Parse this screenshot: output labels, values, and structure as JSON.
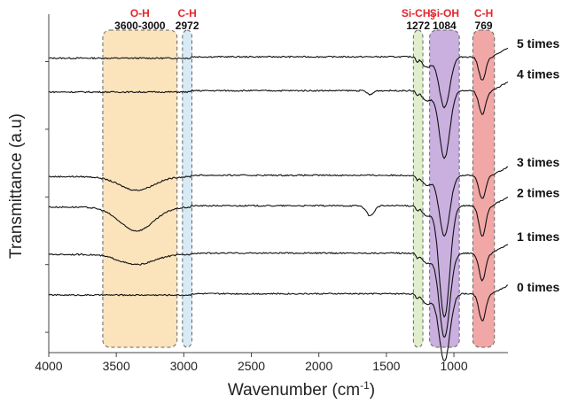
{
  "chart_data": {
    "type": "line",
    "title": "",
    "xlabel": "Wavenumber (cm",
    "xlabel_sup": "-1",
    "xlabel_close": ")",
    "ylabel": "Transmittance (a.u)",
    "xlim": [
      4000,
      600
    ],
    "x_reversed": true,
    "x_ticks": [
      4000,
      3500,
      3000,
      2500,
      2000,
      1500,
      1000
    ],
    "x_tick_labels": [
      "4000",
      "3500",
      "3000",
      "2500",
      "2000",
      "1500",
      "1000"
    ],
    "y_ticks_unlabeled": 5,
    "grid": false,
    "highlight_bands": [
      {
        "label": "O-H",
        "sublabel": "3600-3000",
        "x_range": [
          3600,
          3050
        ],
        "color": "#f8cc85"
      },
      {
        "label": "C-H",
        "sublabel": "2972",
        "x_range": [
          3010,
          2940
        ],
        "color": "#b8d8ec"
      },
      {
        "label": "Si-CH",
        "label_sub": "3",
        "sublabel": "1272",
        "x_range": [
          1300,
          1230
        ],
        "color": "#c7e0a4"
      },
      {
        "label": "Si-OH",
        "sublabel": "1084",
        "x_range": [
          1180,
          960
        ],
        "color": "#9c6fc4"
      },
      {
        "label": "C-H",
        "sublabel": "769",
        "x_range": [
          860,
          700
        ],
        "color": "#e85e5e"
      }
    ],
    "series": [
      {
        "name": "5 times",
        "baseline": 0.87,
        "oh_depth": 0.0,
        "features": [
          [
            1620,
            0.0,
            30
          ]
        ],
        "siOH_depth": 0.15,
        "ch769_depth": 0.07
      },
      {
        "name": "4 times",
        "baseline": 0.77,
        "oh_depth": 0.0,
        "features": [
          [
            1620,
            0.012,
            30
          ]
        ],
        "siOH_depth": 0.2,
        "ch769_depth": 0.07
      },
      {
        "name": "3 times",
        "baseline": 0.52,
        "oh_depth": 0.04,
        "features": [],
        "siOH_depth": 0.18,
        "ch769_depth": 0.07
      },
      {
        "name": "2 times",
        "baseline": 0.43,
        "oh_depth": 0.07,
        "features": [
          [
            1620,
            0.03,
            40
          ]
        ],
        "siOH_depth": 0.33,
        "ch769_depth": 0.09
      },
      {
        "name": "1 times",
        "baseline": 0.29,
        "oh_depth": 0.03,
        "features": [],
        "siOH_depth": 0.25,
        "ch769_depth": 0.08
      },
      {
        "name": "0 times",
        "baseline": 0.17,
        "oh_depth": 0.0,
        "features": [],
        "siOH_depth": 0.2,
        "ch769_depth": 0.08
      }
    ],
    "series_label_positions": [
      0.9,
      0.81,
      0.55,
      0.46,
      0.33,
      0.18
    ]
  }
}
